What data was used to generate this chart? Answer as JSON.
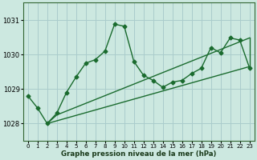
{
  "xlabel": "Graphe pression niveau de la mer (hPa)",
  "bg_color": "#cce8e0",
  "grid_color": "#aacccc",
  "line_color": "#1a6b2e",
  "ylim": [
    1027.5,
    1031.5
  ],
  "xlim": [
    -0.5,
    23.5
  ],
  "yticks": [
    1028,
    1029,
    1030,
    1031
  ],
  "xticks": [
    0,
    1,
    2,
    3,
    4,
    5,
    6,
    7,
    8,
    9,
    10,
    11,
    12,
    13,
    14,
    15,
    16,
    17,
    18,
    19,
    20,
    21,
    22,
    23
  ],
  "series1_x": [
    0,
    1,
    2,
    3,
    4,
    5,
    6,
    7,
    8,
    9,
    10,
    11,
    12,
    13,
    14,
    15,
    16,
    17,
    18,
    19,
    20,
    21,
    22,
    23
  ],
  "series1_y": [
    1028.8,
    1028.45,
    1028.0,
    1028.3,
    1028.9,
    1029.35,
    1029.75,
    1029.85,
    1030.1,
    1030.88,
    1030.82,
    1029.8,
    1029.4,
    1029.25,
    1029.05,
    1029.2,
    1029.25,
    1029.45,
    1029.6,
    1030.2,
    1030.05,
    1030.48,
    1030.42,
    1029.62
  ],
  "line2_x": [
    2,
    23
  ],
  "line2_y": [
    1028.0,
    1029.65
  ],
  "line3_x": [
    2,
    3,
    23
  ],
  "line3_y": [
    1028.0,
    1028.25,
    1030.48
  ],
  "line4_x": [
    23,
    23
  ],
  "line4_y": [
    1029.65,
    1030.48
  ],
  "marker_size": 2.5,
  "linewidth": 1.0
}
